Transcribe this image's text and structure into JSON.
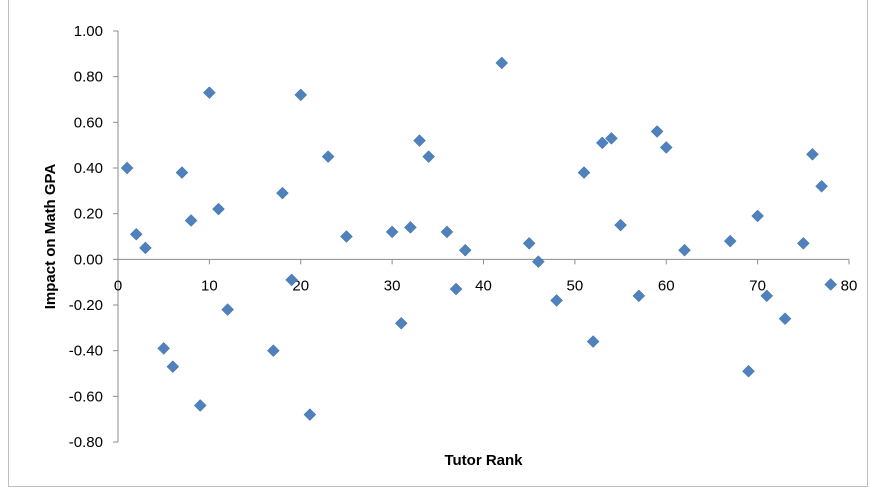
{
  "chart_data": {
    "type": "scatter",
    "title": "",
    "xlabel": "Tutor Rank",
    "ylabel": "Impact on Math GPA",
    "xlim": [
      0,
      80
    ],
    "ylim": [
      -0.8,
      1.0
    ],
    "x_ticks": [
      0,
      10,
      20,
      30,
      40,
      50,
      60,
      70,
      80
    ],
    "x_tick_labels": [
      "0",
      "10",
      "20",
      "30",
      "40",
      "50",
      "60",
      "70",
      "80"
    ],
    "y_ticks": [
      1.0,
      0.8,
      0.6,
      0.4,
      0.2,
      0.0,
      -0.2,
      -0.4,
      -0.6,
      -0.8
    ],
    "y_tick_labels": [
      "1.00",
      "0.80",
      "0.60",
      "0.40",
      "0.20",
      "0.00",
      "-0.20",
      "-0.40",
      "-0.60",
      "-0.80"
    ],
    "grid": false,
    "legend": "none",
    "marker": "diamond",
    "marker_color": "#4f81bd",
    "series": [
      {
        "points": [
          [
            1,
            0.4
          ],
          [
            2,
            0.11
          ],
          [
            3,
            0.05
          ],
          [
            5,
            -0.39
          ],
          [
            6,
            -0.47
          ],
          [
            7,
            0.38
          ],
          [
            8,
            0.17
          ],
          [
            9,
            -0.64
          ],
          [
            10,
            0.73
          ],
          [
            11,
            0.22
          ],
          [
            12,
            -0.22
          ],
          [
            17,
            -0.4
          ],
          [
            18,
            0.29
          ],
          [
            19,
            -0.09
          ],
          [
            20,
            0.72
          ],
          [
            21,
            -0.68
          ],
          [
            23,
            0.45
          ],
          [
            25,
            0.1
          ],
          [
            30,
            0.12
          ],
          [
            31,
            -0.28
          ],
          [
            32,
            0.14
          ],
          [
            33,
            0.52
          ],
          [
            34,
            0.45
          ],
          [
            36,
            0.12
          ],
          [
            37,
            -0.13
          ],
          [
            38,
            0.04
          ],
          [
            42,
            0.86
          ],
          [
            45,
            0.07
          ],
          [
            46,
            -0.01
          ],
          [
            48,
            -0.18
          ],
          [
            51,
            0.38
          ],
          [
            52,
            -0.36
          ],
          [
            53,
            0.51
          ],
          [
            54,
            0.53
          ],
          [
            55,
            0.15
          ],
          [
            57,
            -0.16
          ],
          [
            59,
            0.56
          ],
          [
            60,
            0.49
          ],
          [
            62,
            0.04
          ],
          [
            67,
            0.08
          ],
          [
            69,
            -0.49
          ],
          [
            70,
            0.19
          ],
          [
            71,
            -0.16
          ],
          [
            73,
            -0.26
          ],
          [
            75,
            0.07
          ],
          [
            76,
            0.46
          ],
          [
            77,
            0.32
          ],
          [
            78,
            -0.11
          ]
        ]
      }
    ]
  }
}
